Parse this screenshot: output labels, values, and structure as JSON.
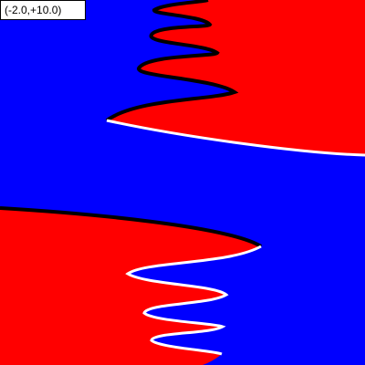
{
  "coordinate_readout": "(-2.0,+10.0)",
  "colors": {
    "region_a": "#0000ff",
    "region_b": "#ff0000",
    "boundary_dark": "#000000",
    "boundary_light": "#ffffff"
  }
}
